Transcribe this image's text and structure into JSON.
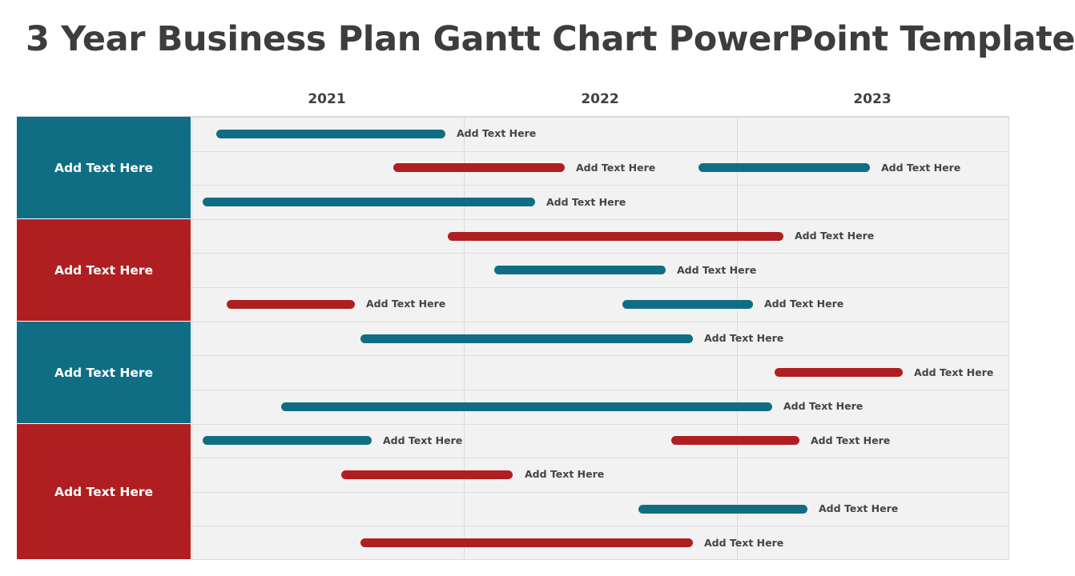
{
  "title": "3 Year Business Plan Gantt Chart PowerPoint Template",
  "colors": {
    "teal": "#0f6e84",
    "red": "#af1f22",
    "grid_bg": "#f2f2f2",
    "text": "#3d3d3d"
  },
  "chart_data": {
    "type": "gantt",
    "title": "3 Year Business Plan Gantt Chart PowerPoint Template",
    "years": [
      "2021",
      "2022",
      "2023"
    ],
    "x_range": [
      2021.0,
      2024.0
    ],
    "groups": [
      {
        "label": "Add Text Here",
        "color": "teal",
        "rows": [
          0,
          1,
          2
        ]
      },
      {
        "label": "Add Text Here",
        "color": "red",
        "rows": [
          3,
          4,
          5
        ]
      },
      {
        "label": "Add Text Here",
        "color": "teal",
        "rows": [
          6,
          7,
          8
        ]
      },
      {
        "label": "Add Text Here",
        "color": "red",
        "rows": [
          9,
          10,
          11,
          12
        ]
      }
    ],
    "tasks": [
      {
        "row": 0,
        "start": 2021.09,
        "end": 2021.93,
        "color": "teal",
        "label": "Add Text Here"
      },
      {
        "row": 1,
        "start": 2021.74,
        "end": 2022.37,
        "color": "red",
        "label": "Add Text Here"
      },
      {
        "row": 1,
        "start": 2022.86,
        "end": 2023.49,
        "color": "teal",
        "label": "Add Text Here"
      },
      {
        "row": 2,
        "start": 2021.04,
        "end": 2022.26,
        "color": "teal",
        "label": "Add Text Here"
      },
      {
        "row": 3,
        "start": 2021.94,
        "end": 2023.17,
        "color": "red",
        "label": "Add Text Here"
      },
      {
        "row": 4,
        "start": 2022.11,
        "end": 2022.74,
        "color": "teal",
        "label": "Add Text Here"
      },
      {
        "row": 5,
        "start": 2021.13,
        "end": 2021.6,
        "color": "red",
        "label": "Add Text Here"
      },
      {
        "row": 5,
        "start": 2022.58,
        "end": 2023.06,
        "color": "teal",
        "label": "Add Text Here"
      },
      {
        "row": 6,
        "start": 2021.62,
        "end": 2022.84,
        "color": "teal",
        "label": "Add Text Here"
      },
      {
        "row": 7,
        "start": 2023.14,
        "end": 2023.61,
        "color": "red",
        "label": "Add Text Here"
      },
      {
        "row": 8,
        "start": 2021.33,
        "end": 2023.13,
        "color": "teal",
        "label": "Add Text Here"
      },
      {
        "row": 9,
        "start": 2021.04,
        "end": 2021.66,
        "color": "teal",
        "label": "Add Text Here"
      },
      {
        "row": 9,
        "start": 2022.76,
        "end": 2023.23,
        "color": "red",
        "label": "Add Text Here"
      },
      {
        "row": 10,
        "start": 2021.55,
        "end": 2022.18,
        "color": "red",
        "label": "Add Text Here"
      },
      {
        "row": 11,
        "start": 2022.64,
        "end": 2023.26,
        "color": "teal",
        "label": "Add Text Here"
      },
      {
        "row": 12,
        "start": 2021.62,
        "end": 2022.84,
        "color": "red",
        "label": "Add Text Here"
      }
    ]
  }
}
